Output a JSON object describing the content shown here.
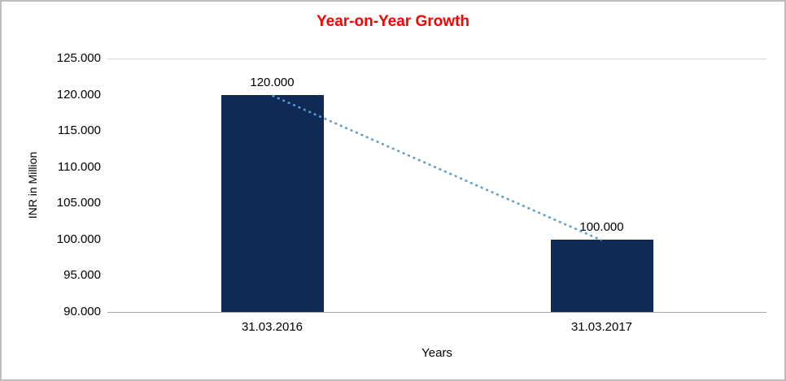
{
  "chart_data": {
    "type": "bar",
    "title": "Year-on-Year Growth",
    "title_color": "#ff0000",
    "xlabel": "Years",
    "ylabel": "INR in Million",
    "categories": [
      "31.03.2016",
      "31.03.2017"
    ],
    "values": [
      120,
      100
    ],
    "value_labels": [
      "120.000",
      "100.000"
    ],
    "ylim": [
      90,
      125
    ],
    "yticks": [
      125,
      120,
      115,
      110,
      105,
      100,
      95,
      90
    ],
    "ytick_labels": [
      "125.000",
      "120.000",
      "115.000",
      "110.000",
      "105.000",
      "100.000",
      "95.000",
      "90.000"
    ],
    "bar_color": "#0e2a55",
    "trendline_color": "#5b9bd5",
    "gridline_color": "#d9d9d9",
    "axis_line_color": "#a6a6a6",
    "legend": "off",
    "grid": "top-line-only"
  }
}
